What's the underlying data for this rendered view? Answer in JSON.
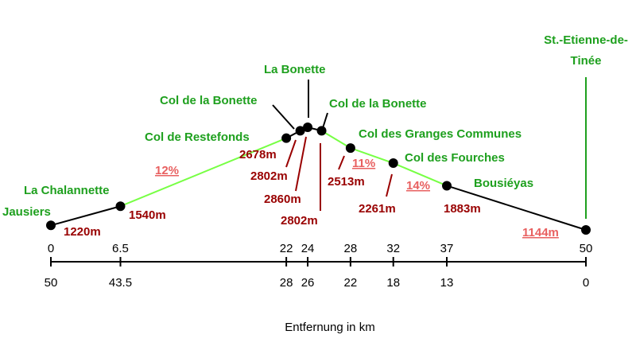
{
  "chart_data": {
    "type": "line",
    "x_label": "Entfernung in km",
    "x": [
      0,
      6.5,
      22,
      23.3,
      24,
      25.3,
      28,
      32,
      37,
      50
    ],
    "xlim": [
      0,
      50
    ],
    "xticks": [
      0,
      6.5,
      22,
      24,
      28,
      32,
      37,
      50
    ],
    "x2lim": [
      50,
      0
    ],
    "x2ticks": [
      50,
      43.5,
      28,
      26,
      22,
      18,
      13,
      0
    ],
    "ylim": [
      1144,
      2860
    ],
    "names": [
      "Jausiers",
      "La Chalannette",
      "Col de Restefonds",
      "Col de la Bonette",
      "La Bonette",
      "Col de la Bonette",
      "Col des Granges Communes",
      "Col des Fourches",
      "Bousiéyas",
      "St.-Etienne-de-Tinée"
    ],
    "values": [
      1220,
      1540,
      2678,
      2802,
      2860,
      2802,
      2513,
      2261,
      1883,
      1144
    ],
    "value_labels": [
      "1220m",
      "1540m",
      "2678m",
      "2802m",
      "2860m",
      "2802m",
      "2513m",
      "2261m",
      "1883m",
      "1144m"
    ],
    "segment_colors": [
      "#000000",
      "#77ff44",
      "#000000",
      "#000000",
      "#000000",
      "#77ff44",
      "#77ff44",
      "#77ff44",
      "#000000"
    ],
    "gradients": [
      "12%",
      "11%",
      "14%"
    ],
    "name_color": "#1ea01e",
    "label_color": "#990000",
    "gradient_color": "#e86060"
  }
}
